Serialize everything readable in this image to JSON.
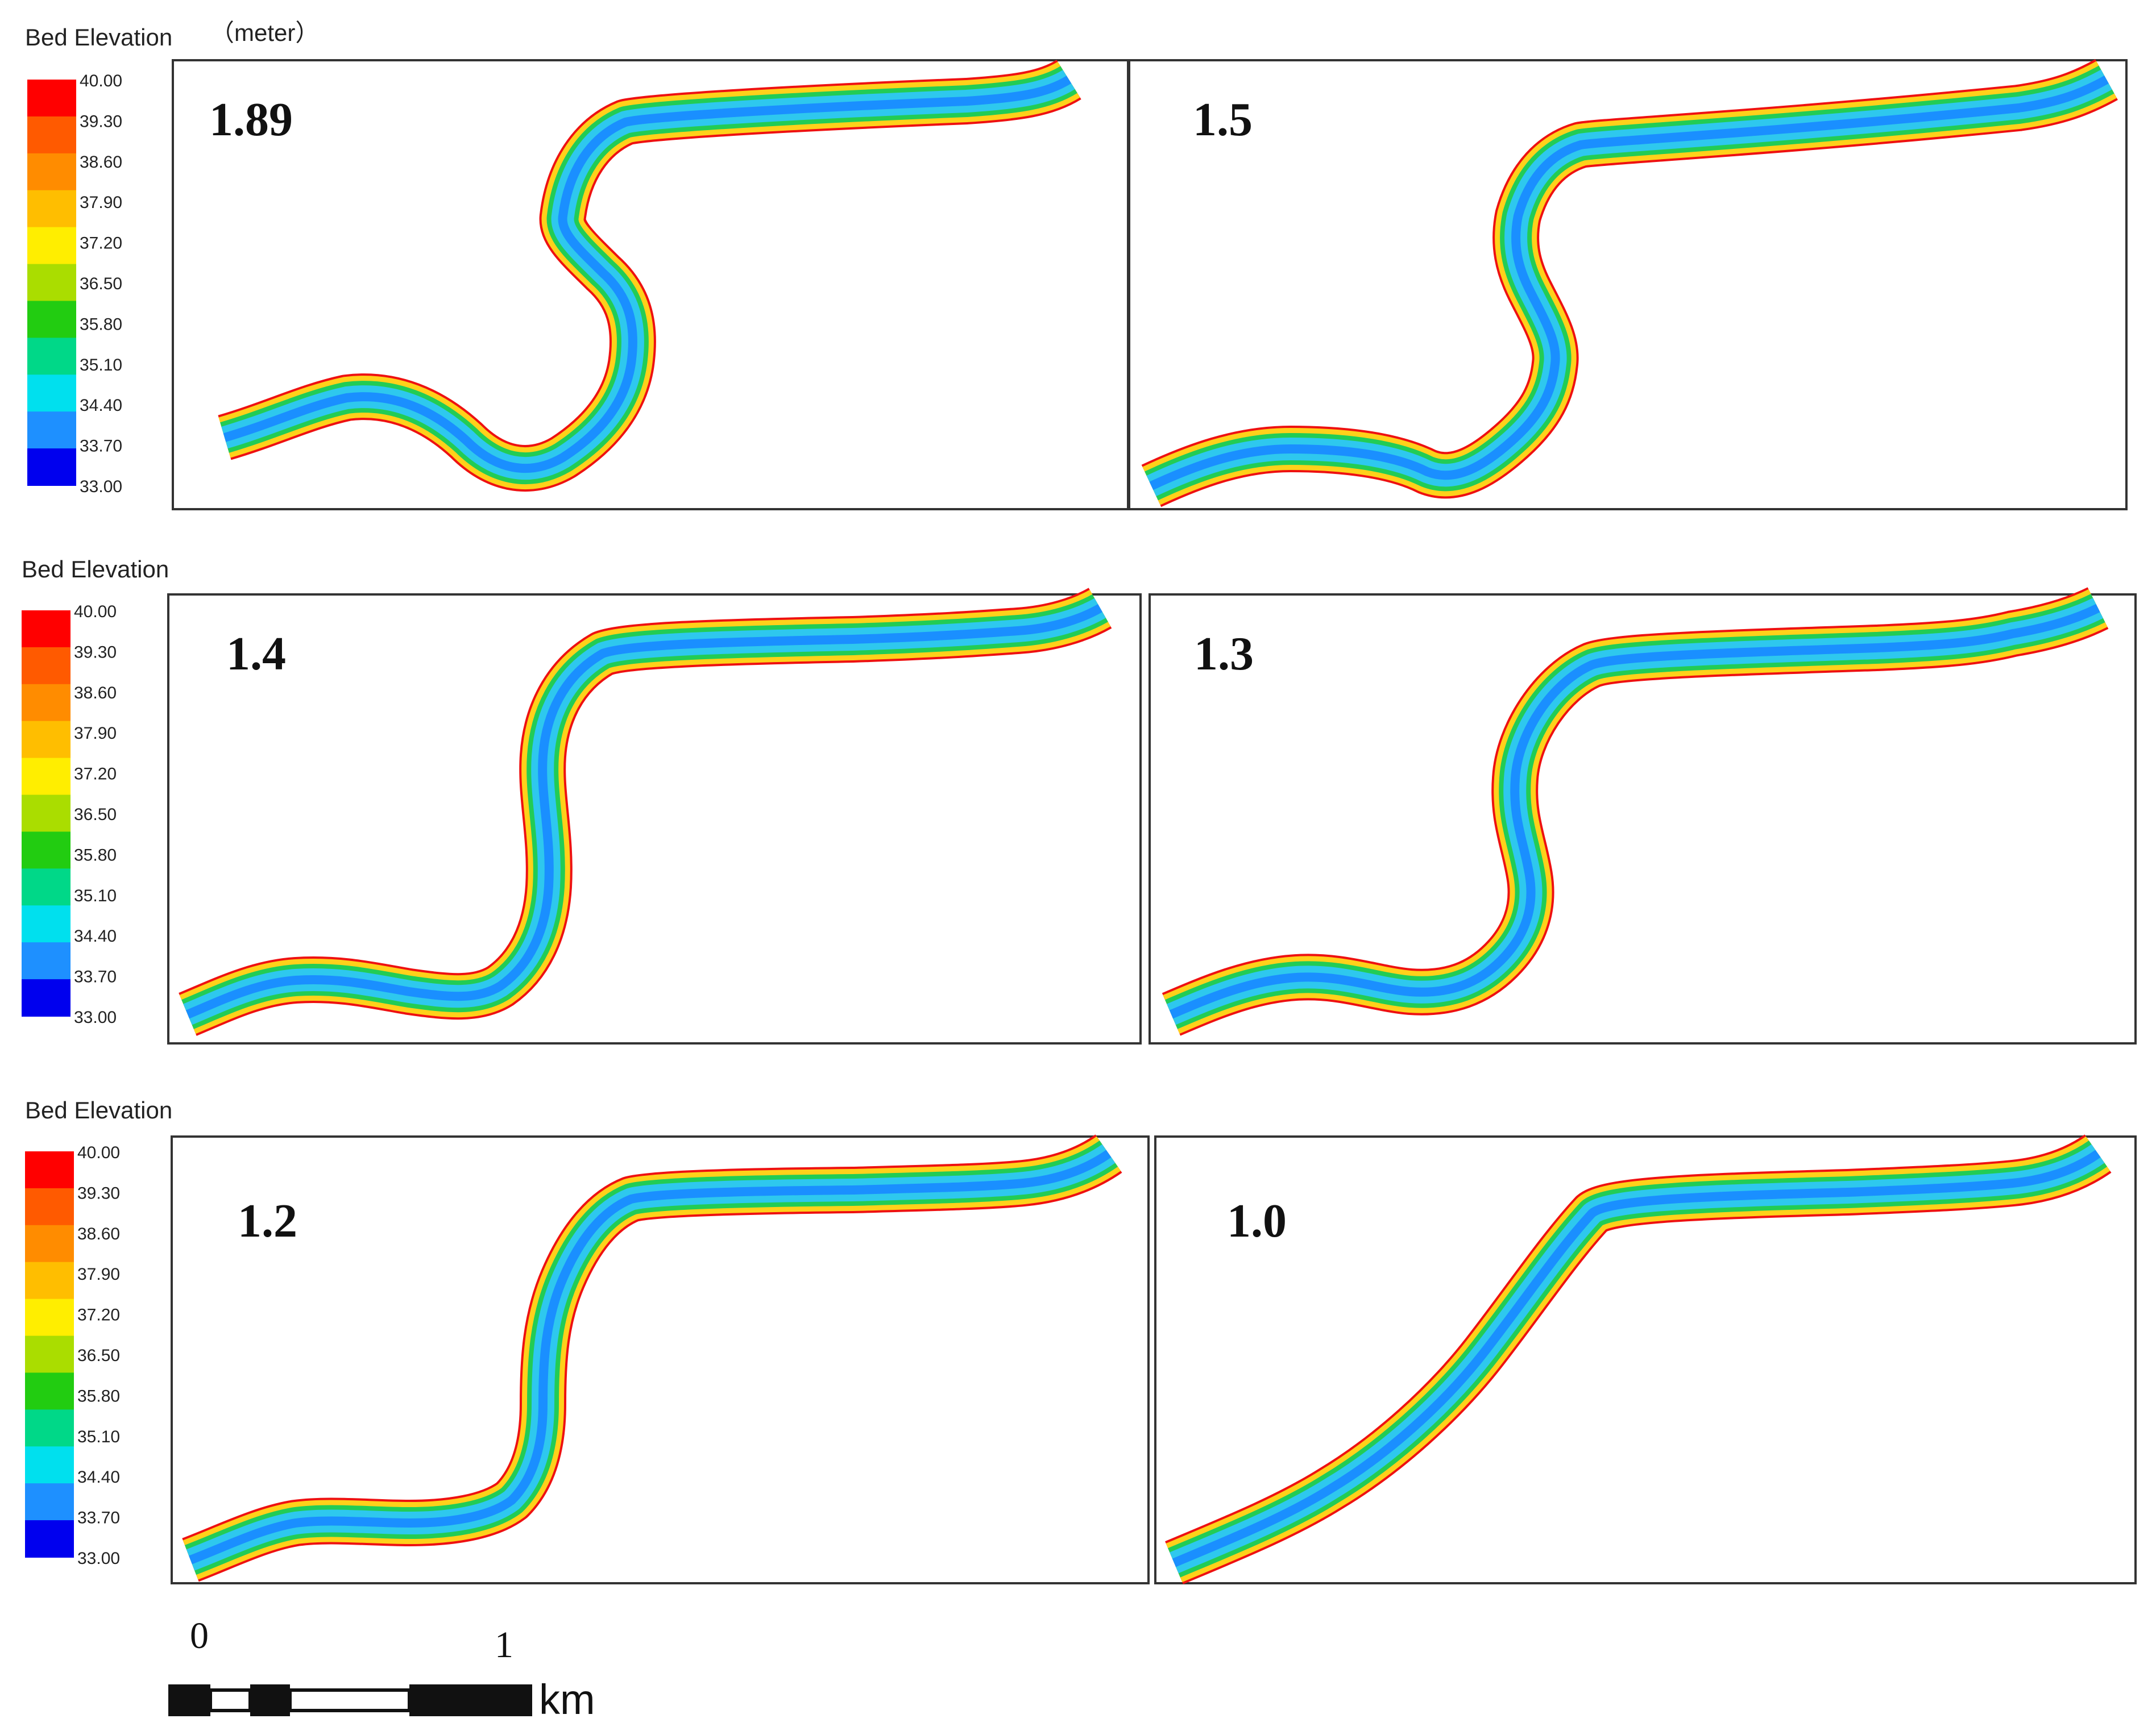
{
  "figure": {
    "units_label": "（meter）",
    "legend_title": "Bed Elevation",
    "legend_ticks": [
      "40.00",
      "39.30",
      "38.60",
      "37.90",
      "37.20",
      "36.50",
      "35.80",
      "35.10",
      "34.40",
      "33.70",
      "33.00"
    ],
    "legend_colors": [
      "#ff0000",
      "#ff5a00",
      "#ff8c00",
      "#ffbe00",
      "#ffee00",
      "#aadd00",
      "#22cc11",
      "#00d888",
      "#00e0ee",
      "#1e90ff",
      "#0000ee"
    ],
    "colors": {
      "bank": "#ee1111",
      "outer": "#ffd11a",
      "mid": "#22cc55",
      "inner": "#2ec8ee",
      "core": "#1a8fff",
      "frame": "#333333"
    },
    "panels": [
      {
        "label": "1.89"
      },
      {
        "label": "1.5"
      },
      {
        "label": "1.4"
      },
      {
        "label": "1.3"
      },
      {
        "label": "1.2"
      },
      {
        "label": "1.0"
      }
    ],
    "scale_bar": {
      "ticks": [
        "0",
        "1"
      ],
      "unit": "km"
    }
  }
}
